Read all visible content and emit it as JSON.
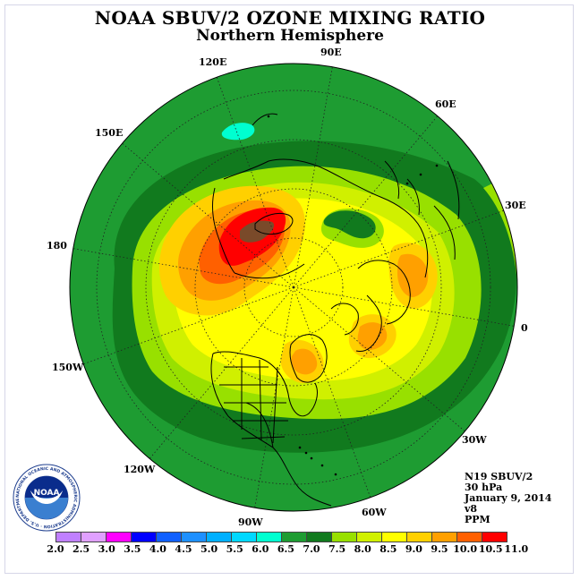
{
  "title": "NOAA SBUV/2 OZONE MIXING RATIO",
  "subtitle": "Northern Hemisphere",
  "longitude_labels": [
    "90E",
    "60E",
    "30E",
    "0",
    "30W",
    "60W",
    "90W",
    "120W",
    "150W",
    "180",
    "150E",
    "120E"
  ],
  "info": {
    "satellite": "N19 SBUV/2",
    "level": "30 hPa",
    "date": "January 9, 2014",
    "version": "v8",
    "units": "PPM"
  },
  "logo": {
    "text": "NOAA",
    "ring_text": "NATIONAL OCEANIC AND ATMOSPHERIC ADMINISTRATION · U.S. DEPARTMENT OF COMMERCE"
  },
  "colorbar": {
    "labels": [
      "2.0",
      "2.5",
      "3.0",
      "3.5",
      "4.0",
      "4.5",
      "5.0",
      "5.5",
      "6.0",
      "6.5",
      "7.0",
      "7.5",
      "8.0",
      "8.5",
      "9.0",
      "9.5",
      "10.0",
      "10.5",
      "11.0"
    ],
    "colors": [
      "#c080ff",
      "#e0a0ff",
      "#ff00ff",
      "#0000ff",
      "#1060ff",
      "#1e90ff",
      "#00b0ff",
      "#00d8ff",
      "#00ffd0",
      "#1e9c32",
      "#117a1e",
      "#98e000",
      "#d0f000",
      "#ffff00",
      "#ffd000",
      "#ffa000",
      "#ff6000",
      "#ff0000",
      "#7a4a2a"
    ]
  }
}
